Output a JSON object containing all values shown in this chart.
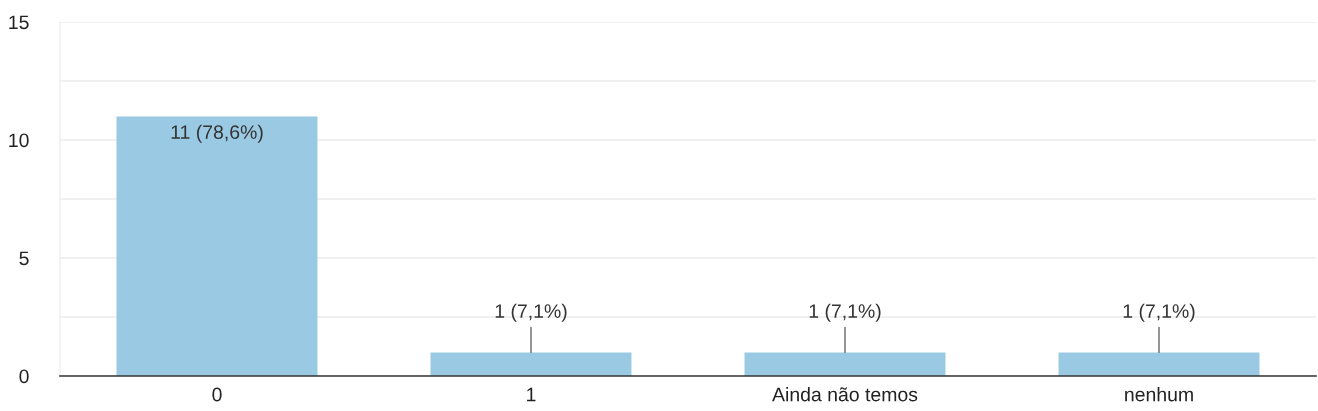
{
  "chart_data": {
    "type": "bar",
    "categories": [
      "0",
      "1",
      "Ainda não temos",
      "nenhum"
    ],
    "values": [
      11,
      1,
      1,
      1
    ],
    "value_labels": [
      "11 (78,6%)",
      "1 (7,1%)",
      "1 (7,1%)",
      "1 (7,1%)"
    ],
    "color": "#9ac9e3",
    "ylim": [
      0,
      15
    ],
    "yticks": [
      0,
      {
        "value": 2.5,
        "label": null
      },
      5,
      {
        "value": 7.5,
        "label": null
      },
      10,
      {
        "value": 12.5,
        "label": null
      },
      15
    ],
    "grid": "y"
  }
}
